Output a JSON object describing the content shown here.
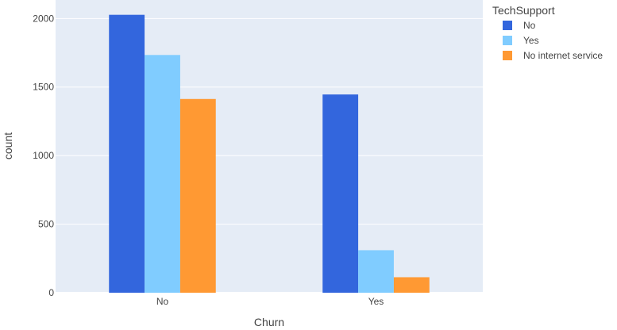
{
  "chart_data": {
    "type": "bar",
    "categories": [
      "No",
      "Yes"
    ],
    "series": [
      {
        "name": "No",
        "values": [
          2027,
          1446
        ],
        "color": "#3366dd"
      },
      {
        "name": "Yes",
        "values": [
          1734,
          310
        ],
        "color": "#80ccff"
      },
      {
        "name": "No internet service",
        "values": [
          1413,
          113
        ],
        "color": "#ff9933"
      }
    ],
    "xlabel": "Churn",
    "ylabel": "count",
    "ylim": [
      0,
      2135
    ],
    "yticks": [
      0,
      500,
      1000,
      1500,
      2000
    ],
    "legend_title": "TechSupport",
    "legend_position": "right",
    "grid": true,
    "plot_background": "#e5ecf6"
  }
}
